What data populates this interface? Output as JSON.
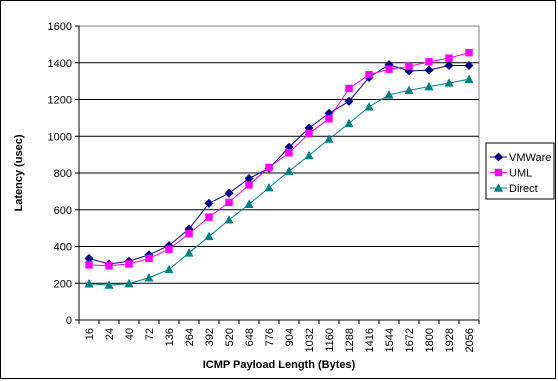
{
  "chart_data": {
    "type": "line",
    "xlabel": "ICMP Payload Length (Bytes)",
    "ylabel": "Latency (usec)",
    "ylim": [
      0,
      1600
    ],
    "yticks": [
      0,
      200,
      400,
      600,
      800,
      1000,
      1200,
      1400,
      1600
    ],
    "grid": "horizontal",
    "legend": "right",
    "categories": [
      "16",
      "24",
      "40",
      "72",
      "136",
      "264",
      "392",
      "520",
      "648",
      "776",
      "904",
      "1032",
      "1160",
      "1288",
      "1416",
      "1544",
      "1672",
      "1800",
      "1928",
      "2056"
    ],
    "series": [
      {
        "name": "VMWare",
        "color": "#000080",
        "marker": "diamond",
        "values": [
          335,
          305,
          320,
          355,
          405,
          495,
          635,
          690,
          770,
          825,
          940,
          1045,
          1125,
          1190,
          1320,
          1390,
          1355,
          1360,
          1385,
          1385
        ]
      },
      {
        "name": "UML",
        "color": "#ff00ff",
        "marker": "square",
        "values": [
          300,
          295,
          305,
          335,
          385,
          470,
          560,
          640,
          735,
          830,
          910,
          1015,
          1095,
          1260,
          1335,
          1365,
          1380,
          1405,
          1425,
          1455
        ]
      },
      {
        "name": "Direct",
        "color": "#008080",
        "marker": "triangle",
        "values": [
          197,
          190,
          198,
          230,
          275,
          365,
          455,
          545,
          630,
          720,
          810,
          895,
          985,
          1070,
          1160,
          1225,
          1250,
          1270,
          1290,
          1310
        ]
      }
    ]
  }
}
